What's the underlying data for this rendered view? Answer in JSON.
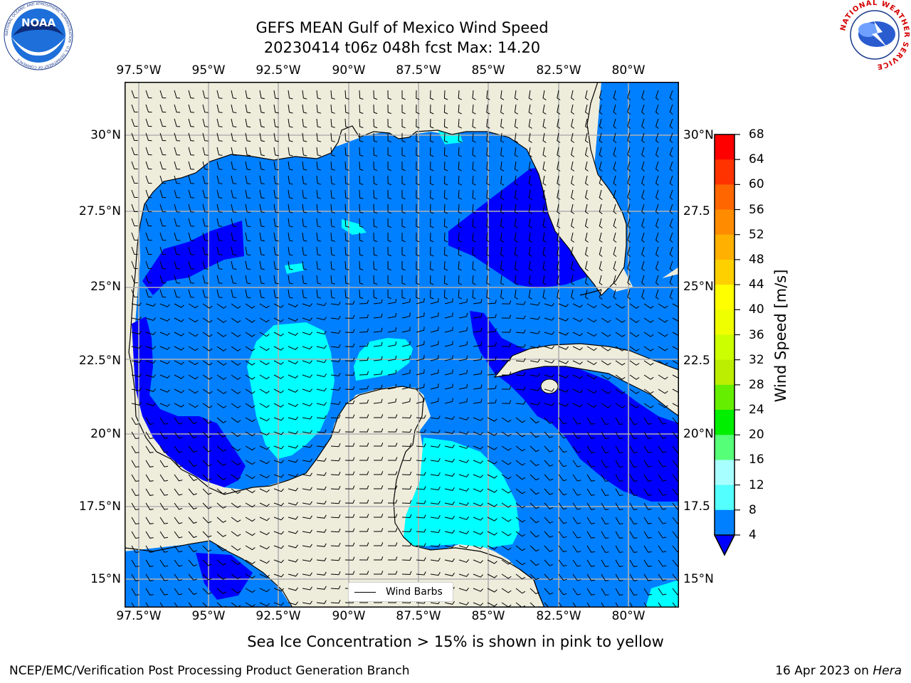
{
  "title": {
    "line1": "GEFS MEAN Gulf of Mexico Wind Speed",
    "line2": "20230414 t06z 048h fcst   Max: 14.20"
  },
  "logos": {
    "left": "NOAA",
    "left_ring": "NATIONAL OCEANIC AND ATMOSPHERIC ADMINISTRATION · U.S. DEPARTMENT OF COMMERCE",
    "right_ring": "NATIONAL WEATHER SERVICE"
  },
  "map": {
    "lon_ticks": [
      "97.5°W",
      "95°W",
      "92.5°W",
      "90°W",
      "87.5°W",
      "85°W",
      "82.5°W",
      "80°W"
    ],
    "lat_ticks": [
      "30°N",
      "27.5°N",
      "25°N",
      "22.5°N",
      "20°N",
      "17.5°N",
      "15°N"
    ],
    "lat_ticks_right": [
      "30°N",
      "27.5",
      "25°N",
      "22.5",
      "20°N",
      "17.5",
      "15°N"
    ],
    "legend_label": "Wind Barbs",
    "colors": {
      "land": "#eeeddc",
      "speed_4_8": "#0080ff",
      "speed_lt_4": "#0000ff",
      "speed_8_12": "#00ffff",
      "speed_12_16": "#53ffff",
      "grid": "#b0b0b0"
    }
  },
  "colorbar": {
    "labels": [
      "68",
      "64",
      "60",
      "56",
      "52",
      "48",
      "44",
      "40",
      "36",
      "32",
      "28",
      "24",
      "20",
      "16",
      "12",
      "8",
      "4"
    ],
    "colors": [
      "#ff0000",
      "#ff3300",
      "#ff6600",
      "#ff8c00",
      "#ffb000",
      "#ffd000",
      "#ffff00",
      "#f0ff00",
      "#ccff00",
      "#bbee00",
      "#66ee00",
      "#00ee00",
      "#55ff77",
      "#a8ffff",
      "#53ffff",
      "#00ffff",
      "#0080ff"
    ],
    "extend_color": "#0000ff",
    "title": "Wind Speed [m/s]"
  },
  "subtitle": "Sea Ice Concentration > 15% is shown in pink to yellow",
  "footer": {
    "left": "NCEP/EMC/Verification Post Processing Product Generation Branch",
    "date": "16 Apr 2023 on ",
    "host": "Hera"
  }
}
